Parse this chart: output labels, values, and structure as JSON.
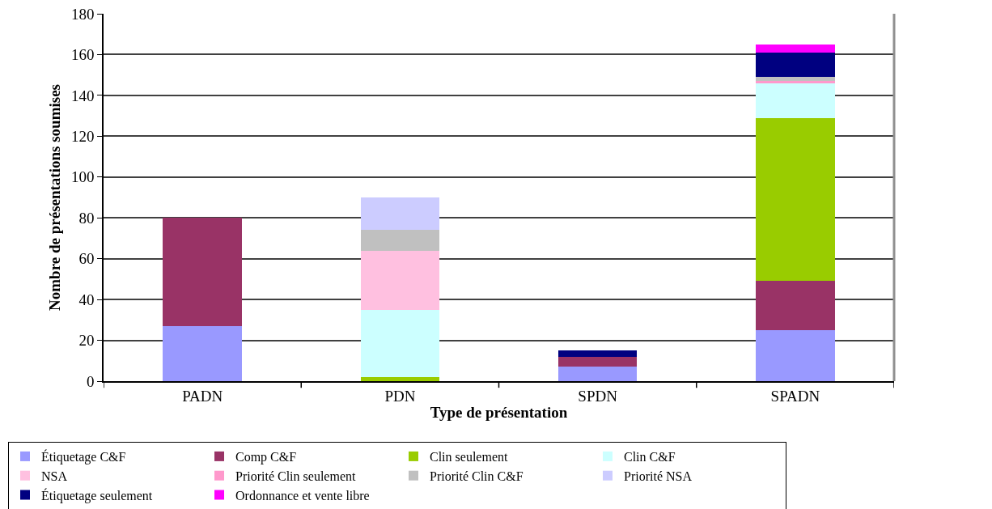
{
  "chart_data": {
    "type": "bar",
    "stacked": true,
    "xlabel": "Type de présentation",
    "ylabel": "Nombre de présentations soumises",
    "categories": [
      "PADN",
      "PDN",
      "SPDN",
      "SPADN"
    ],
    "ylim": [
      0,
      180
    ],
    "yticks": [
      0,
      20,
      40,
      60,
      80,
      100,
      120,
      140,
      160,
      180
    ],
    "grid": "y",
    "legend": "bottom",
    "series": [
      {
        "name": "Étiquetage C&F",
        "color": "#9999ff",
        "values": [
          27,
          null,
          7,
          25
        ]
      },
      {
        "name": "Comp C&F",
        "color": "#993366",
        "values": [
          53,
          null,
          5,
          24
        ]
      },
      {
        "name": "Clin seulement",
        "color": "#99cc00",
        "values": [
          null,
          2,
          null,
          80
        ]
      },
      {
        "name": "Clin C&F",
        "color": "#ccffff",
        "values": [
          null,
          33,
          null,
          17
        ]
      },
      {
        "name": "NSA",
        "color": "#ffc0e0",
        "values": [
          null,
          29,
          null,
          null
        ]
      },
      {
        "name": "Priorité Clin seulement",
        "color": "#ff99cc",
        "values": [
          null,
          null,
          null,
          1
        ]
      },
      {
        "name": "Priorité Clin C&F",
        "color": "#c0c0c0",
        "values": [
          null,
          10,
          null,
          2
        ]
      },
      {
        "name": "Priorité NSA",
        "color": "#ccccff",
        "values": [
          null,
          16,
          null,
          null
        ]
      },
      {
        "name": "Étiquetage seulement",
        "color": "#000080",
        "values": [
          null,
          null,
          3,
          12
        ]
      },
      {
        "name": "Ordonnance et vente libre",
        "color": "#ff00ff",
        "values": [
          null,
          null,
          null,
          4
        ]
      }
    ]
  }
}
